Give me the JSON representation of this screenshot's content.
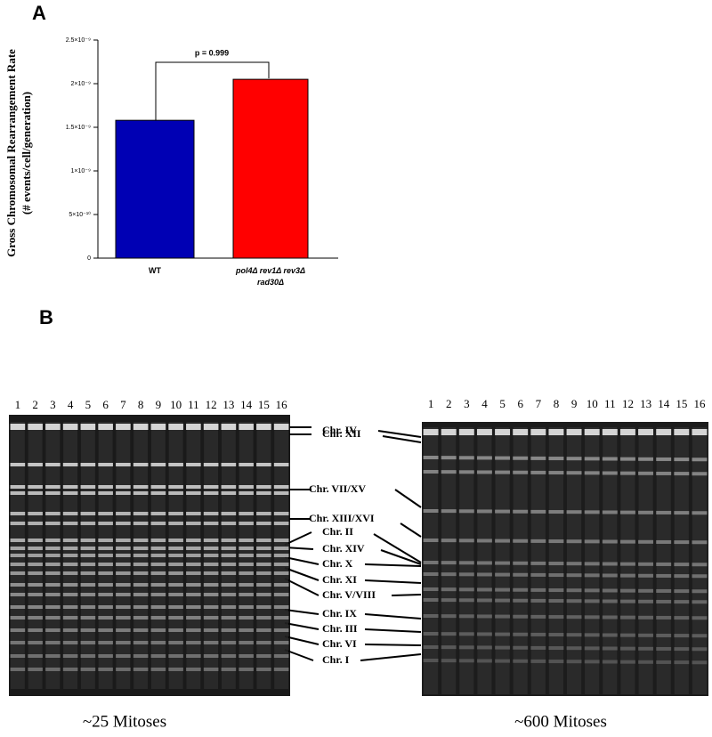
{
  "chart_data": {
    "type": "bar",
    "panel_label": "A",
    "ylabel": [
      "Gross Chromosomal Rearrangement Rate",
      "(# events/cell/generation)"
    ],
    "categories": [
      "WT",
      "pol4Δ rev1Δ rev3Δ rad30Δ"
    ],
    "values": [
      1.58e-09,
      2.05e-09
    ],
    "colors": [
      "#0000b4",
      "#ff0000"
    ],
    "ylim": [
      0,
      2.5e-09
    ],
    "yticks": [
      0,
      {
        "value": 5e-10,
        "label": "5×10⁻¹⁰"
      },
      {
        "value": 1e-09,
        "label": "1×10⁻⁹"
      },
      {
        "value": 1.5e-09,
        "label": "1.5×10⁻⁹"
      },
      {
        "value": 2e-09,
        "label": "2×10⁻⁹"
      },
      {
        "value": 2.5e-09,
        "label": "2.5×10⁻⁹"
      }
    ],
    "annotation": "p = 0.999"
  },
  "gels": {
    "panel_label": "B",
    "left_lanes": [
      "1",
      "2",
      "3",
      "4",
      "5",
      "6",
      "7",
      "8",
      "9",
      "10",
      "11",
      "12",
      "13",
      "14",
      "15",
      "16"
    ],
    "right_lanes": [
      "1",
      "2",
      "3",
      "4",
      "5",
      "6",
      "7",
      "8",
      "9",
      "10",
      "11",
      "12",
      "13",
      "14",
      "15",
      "16"
    ],
    "chromosomes": [
      "Chr. XII",
      "Chr. IV",
      "Chr. VII/XV",
      "Chr. XIII/XVI",
      "Chr. II",
      "Chr. XIV",
      "Chr. X",
      "Chr. XI",
      "Chr. V/VIII",
      "Chr. IX",
      "Chr. III",
      "Chr. VI",
      "Chr. I"
    ],
    "left_caption": "~25 Mitoses",
    "right_caption": "~600 Mitoses"
  }
}
